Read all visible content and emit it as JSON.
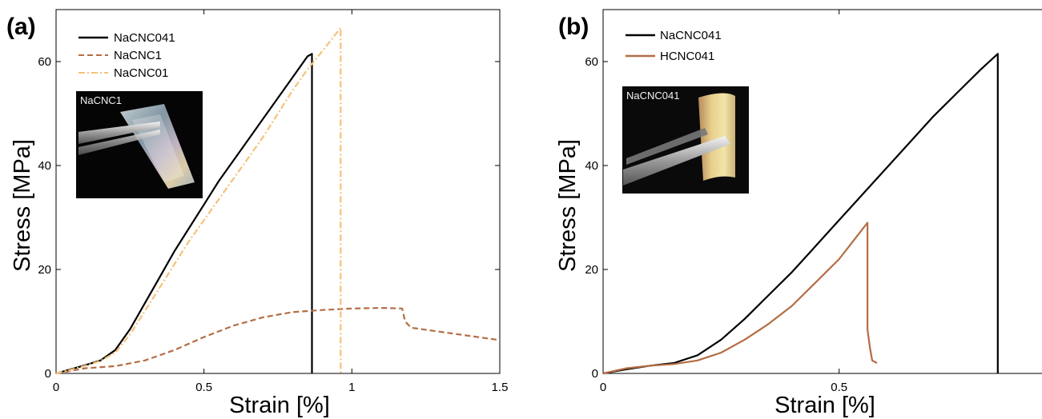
{
  "chart_data": [
    {
      "panel_label": "(a)",
      "type": "line",
      "xlabel": "Strain [%]",
      "ylabel": "Stress [MPa]",
      "xlim": [
        0,
        1.5
      ],
      "ylim": [
        0,
        70
      ],
      "xticks": [
        0,
        0.5,
        1,
        1.5
      ],
      "xtick_labels": [
        "0",
        "0.5",
        "1",
        "1.5"
      ],
      "yticks": [
        0,
        20,
        40,
        60
      ],
      "ytick_labels": [
        "0",
        "20",
        "40",
        "60"
      ],
      "legend_position": "top-left",
      "inset_label": "NaCNC1",
      "series": [
        {
          "name": "NaCNC041",
          "color": "#000000",
          "style": "solid",
          "x": [
            0,
            0.05,
            0.1,
            0.15,
            0.2,
            0.25,
            0.3,
            0.35,
            0.4,
            0.45,
            0.5,
            0.55,
            0.6,
            0.65,
            0.7,
            0.75,
            0.8,
            0.85,
            0.865,
            0.865
          ],
          "y": [
            0,
            0.8,
            1.6,
            2.5,
            4.5,
            8.5,
            13.5,
            18.5,
            23.5,
            28,
            32.5,
            37,
            41,
            45,
            49,
            53,
            57,
            61,
            61.5,
            0
          ]
        },
        {
          "name": "NaCNC1",
          "color": "#b46d45",
          "style": "dashed",
          "x": [
            0,
            0.1,
            0.2,
            0.3,
            0.4,
            0.5,
            0.6,
            0.7,
            0.8,
            0.9,
            1.0,
            1.1,
            1.17,
            1.18,
            1.2,
            1.3,
            1.4,
            1.5
          ],
          "y": [
            0,
            1,
            1.4,
            2.5,
            4.5,
            7,
            9.2,
            10.8,
            11.8,
            12.2,
            12.5,
            12.6,
            12.5,
            10,
            8.8,
            8,
            7.2,
            6.4
          ]
        },
        {
          "name": "NaCNC01",
          "color": "#f5c27a",
          "style": "dashdot",
          "x": [
            0,
            0.05,
            0.1,
            0.15,
            0.2,
            0.25,
            0.3,
            0.35,
            0.4,
            0.45,
            0.5,
            0.55,
            0.6,
            0.65,
            0.7,
            0.75,
            0.8,
            0.85,
            0.9,
            0.962,
            0.962
          ],
          "y": [
            0,
            0.7,
            1.5,
            2.4,
            4,
            7.5,
            12,
            16.5,
            21,
            25.5,
            29.5,
            33.5,
            37.5,
            41.5,
            45.5,
            50,
            54.5,
            58.5,
            62,
            66.5,
            0
          ]
        }
      ]
    },
    {
      "panel_label": "(b)",
      "type": "line",
      "xlabel": "Strain [%]",
      "ylabel": "Stress [MPa]",
      "xlim": [
        0,
        0.95
      ],
      "ylim": [
        0,
        70
      ],
      "xticks": [
        0,
        0.5
      ],
      "xtick_labels": [
        "0",
        "0.5"
      ],
      "yticks": [
        0,
        20,
        40,
        60
      ],
      "ytick_labels": [
        "0",
        "20",
        "40",
        "60"
      ],
      "legend_position": "top-left",
      "inset_label": "NaCNC041",
      "series": [
        {
          "name": "NaCNC041",
          "color": "#000000",
          "style": "solid",
          "x": [
            0,
            0.05,
            0.1,
            0.15,
            0.2,
            0.25,
            0.3,
            0.35,
            0.4,
            0.45,
            0.5,
            0.55,
            0.6,
            0.65,
            0.7,
            0.75,
            0.8,
            0.836,
            0.836
          ],
          "y": [
            0,
            0.8,
            1.5,
            2,
            3.5,
            6.5,
            10.5,
            15,
            19.5,
            24.5,
            29.5,
            34.5,
            39.5,
            44.5,
            49.5,
            54,
            58.5,
            61.5,
            0
          ]
        },
        {
          "name": "HCNC041",
          "color": "#b46d45",
          "style": "solid",
          "x": [
            0,
            0.05,
            0.1,
            0.15,
            0.2,
            0.25,
            0.3,
            0.35,
            0.4,
            0.45,
            0.5,
            0.53,
            0.56,
            0.56,
            0.565,
            0.57,
            0.58
          ],
          "y": [
            0,
            1,
            1.5,
            1.8,
            2.5,
            4,
            6.5,
            9.5,
            13,
            17.5,
            22,
            25.5,
            29,
            8.5,
            5,
            2.5,
            2
          ]
        }
      ]
    }
  ]
}
